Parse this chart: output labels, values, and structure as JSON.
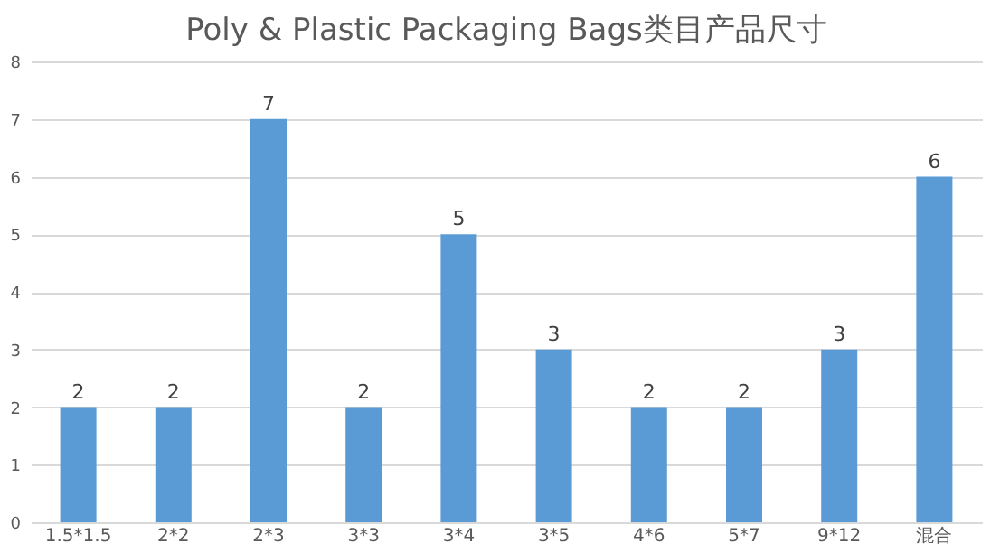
{
  "chart_data": {
    "type": "bar",
    "title": "Poly & Plastic Packaging Bags类目产品尺寸",
    "categories": [
      "1.5*1.5",
      "2*2",
      "2*3",
      "3*3",
      "3*4",
      "3*5",
      "4*6",
      "5*7",
      "9*12",
      "混合"
    ],
    "values": [
      2,
      2,
      7,
      2,
      5,
      3,
      2,
      2,
      3,
      6
    ],
    "color": "#5b9bd5",
    "ylim": [
      0,
      8
    ],
    "yticks": [
      0,
      1,
      2,
      3,
      4,
      5,
      6,
      7,
      8
    ],
    "grid": "y",
    "data_labels": true
  }
}
